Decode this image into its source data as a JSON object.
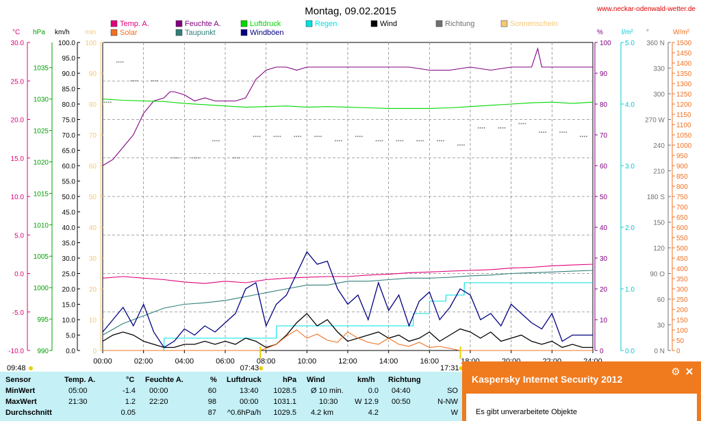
{
  "chart_data": {
    "type": "line",
    "title": "Montag, 09.02.2015",
    "website": "www.neckar-odenwald-wetter.de",
    "x_ticks": [
      "00:00",
      "02:00",
      "04:00",
      "06:00",
      "08:00",
      "10:00",
      "12:00",
      "14:00",
      "16:00",
      "18:00",
      "20:00",
      "22:00",
      "24:00"
    ],
    "sun": {
      "sunrise": "07:43",
      "sunset": "17:31",
      "left_time": "09:48"
    },
    "legend": [
      {
        "name": "Temp. A.",
        "color": "#e0007a"
      },
      {
        "name": "Feuchte A.",
        "color": "#800080"
      },
      {
        "name": "Luftdruck",
        "color": "#00d800"
      },
      {
        "name": "Regen",
        "color": "#00e0e0"
      },
      {
        "name": "Wind",
        "color": "#000000"
      },
      {
        "name": "Richtung",
        "color": "#707070"
      },
      {
        "name": "Sonnenschein",
        "color": "#f5c87a"
      },
      {
        "name": "Solar",
        "color": "#f07020"
      },
      {
        "name": "Taupunkt",
        "color": "#2f7f78"
      },
      {
        "name": "Windböen",
        "color": "#000080"
      }
    ],
    "axes": {
      "temp": {
        "unit": "°C",
        "color": "#e0007a",
        "range": [
          -10,
          30
        ],
        "ticks": [
          "30.0",
          "25.0",
          "20.0",
          "15.0",
          "10.0",
          "5.0",
          "0.0",
          "-5.0",
          "-10.0"
        ]
      },
      "pressure": {
        "unit": "hPa",
        "color": "#00a000",
        "range": [
          990,
          1039
        ],
        "ticks": [
          "1035",
          "1030",
          "1025",
          "1020",
          "1015",
          "1010",
          "1005",
          "1000",
          "995",
          "990"
        ]
      },
      "wind": {
        "unit": "km/h",
        "color": "#000000",
        "range": [
          0,
          100
        ],
        "step": 5
      },
      "sunshine": {
        "unit": "min",
        "color": "#f5c87a",
        "range": [
          0,
          100
        ],
        "ticks": [
          "100",
          "90",
          "80",
          "70",
          "60",
          "50",
          "40",
          "30",
          "20",
          "10",
          "0"
        ]
      },
      "humidity": {
        "unit": "%",
        "color": "#800080",
        "range": [
          0,
          100
        ],
        "ticks": [
          "100",
          "90",
          "80",
          "70",
          "60",
          "50",
          "40",
          "30",
          "20",
          "10",
          "0"
        ]
      },
      "rain": {
        "unit": "l/m²",
        "color": "#00c8d8",
        "range": [
          0,
          5
        ],
        "ticks": [
          "5.0",
          "4.0",
          "3.0",
          "2.0",
          "1.0",
          "0.0"
        ]
      },
      "direction": {
        "unit": "°",
        "color": "#707070",
        "range": [
          0,
          360
        ],
        "ticks": [
          "360 N",
          "330",
          "300",
          "270 W",
          "240",
          "210",
          "180 S",
          "150",
          "120",
          "90 O",
          "60",
          "30",
          "0 N"
        ]
      },
      "solar": {
        "unit": "W/m²",
        "color": "#f07020",
        "range": [
          0,
          1500
        ],
        "step": 50
      }
    },
    "series": [
      {
        "name": "Temp. A.",
        "axis": "temp",
        "x": [
          0,
          1,
          2,
          3,
          4,
          5,
          6,
          7,
          8,
          9,
          10,
          11,
          12,
          13,
          14,
          15,
          16,
          17,
          18,
          19,
          20,
          21,
          22,
          23,
          24
        ],
        "values": [
          -0.6,
          -0.4,
          -0.6,
          -0.8,
          -1.1,
          -1.3,
          -1.0,
          -1.2,
          -0.8,
          -0.6,
          -0.5,
          -0.4,
          -0.4,
          -0.2,
          -0.1,
          0.1,
          0.2,
          0.3,
          0.4,
          0.5,
          0.7,
          0.8,
          1.0,
          1.1,
          1.2
        ]
      },
      {
        "name": "Feuchte A.",
        "axis": "humidity",
        "x": [
          0,
          0.5,
          1,
          1.5,
          2,
          2.5,
          3,
          3.3,
          3.5,
          4,
          4.5,
          5,
          5.5,
          6,
          6.5,
          7,
          7.5,
          8,
          8.5,
          9,
          9.5,
          10,
          11,
          12,
          13,
          14,
          15,
          16,
          17,
          18,
          19,
          20,
          21,
          21.3,
          21.5,
          22,
          23,
          24
        ],
        "values": [
          60,
          62,
          66,
          70,
          77,
          81,
          82,
          84,
          84,
          83,
          81,
          82,
          81,
          81,
          81,
          82,
          88,
          91,
          92,
          92,
          91,
          92,
          92,
          92,
          92,
          92,
          92,
          91,
          91,
          92,
          91,
          92,
          92,
          98,
          92,
          92,
          92,
          92
        ]
      },
      {
        "name": "Luftdruck",
        "axis": "pressure",
        "x": [
          0,
          1,
          2,
          3,
          4,
          5,
          6,
          7,
          8,
          9,
          10,
          11,
          12,
          13,
          14,
          15,
          16,
          17,
          18,
          19,
          20,
          21,
          22,
          23,
          24
        ],
        "values": [
          1030.0,
          1029.8,
          1029.7,
          1029.6,
          1029.3,
          1029.1,
          1028.9,
          1028.7,
          1028.8,
          1028.9,
          1028.7,
          1028.8,
          1028.7,
          1028.6,
          1028.5,
          1028.5,
          1028.5,
          1028.6,
          1028.8,
          1029.0,
          1029.2,
          1029.4,
          1029.5,
          1029.3,
          1029.5
        ]
      },
      {
        "name": "Taupunkt",
        "axis": "temp",
        "x": [
          0,
          1,
          2,
          3,
          4,
          5,
          6,
          7,
          8,
          9,
          10,
          11,
          12,
          13,
          14,
          15,
          16,
          17,
          18,
          19,
          20,
          21,
          22,
          23,
          24
        ],
        "values": [
          -8.0,
          -6.5,
          -5.5,
          -4.5,
          -4.0,
          -3.8,
          -3.5,
          -3.0,
          -2.5,
          -2.0,
          -1.5,
          -1.5,
          -1.0,
          -1.0,
          -0.8,
          -0.6,
          -0.6,
          -0.5,
          -0.3,
          -0.2,
          0.0,
          0.1,
          0.2,
          0.3,
          0.4
        ]
      },
      {
        "name": "Regen",
        "axis": "rain",
        "x": [
          0,
          3,
          3.01,
          8.5,
          8.51,
          15.2,
          15.21,
          16,
          16.01,
          16.8,
          16.81,
          17.7,
          17.71,
          24
        ],
        "values": [
          0,
          0,
          0.2,
          0.2,
          0.4,
          0.4,
          0.6,
          0.6,
          0.8,
          0.8,
          0.9,
          0.9,
          1.1,
          1.1
        ]
      },
      {
        "name": "Wind",
        "axis": "wind",
        "x": [
          0,
          0.5,
          1,
          1.5,
          2,
          2.5,
          3,
          3.5,
          4,
          4.5,
          5,
          5.5,
          6,
          6.5,
          7,
          7.5,
          8,
          8.5,
          9,
          9.5,
          10,
          10.5,
          11,
          11.5,
          12,
          12.5,
          13,
          13.5,
          14,
          14.5,
          15,
          15.5,
          16,
          16.5,
          17,
          17.5,
          18,
          18.5,
          19,
          19.5,
          20,
          20.5,
          21,
          21.5,
          22,
          22.5,
          23,
          23.5,
          24
        ],
        "values": [
          3,
          5,
          6,
          5,
          3,
          2,
          1,
          1,
          2,
          2,
          3,
          2,
          3,
          2,
          4,
          3,
          1,
          2,
          5,
          9,
          12,
          8,
          10,
          6,
          3,
          4,
          5,
          6,
          4,
          5,
          3,
          4,
          6,
          3,
          5,
          7,
          6,
          4,
          6,
          3,
          4,
          5,
          3,
          2,
          3,
          1,
          2,
          1,
          1
        ]
      },
      {
        "name": "Windböen",
        "axis": "wind",
        "x": [
          0,
          0.5,
          1,
          1.5,
          2,
          2.5,
          3,
          3.5,
          4,
          4.5,
          5,
          5.5,
          6,
          6.5,
          7,
          7.5,
          8,
          8.5,
          9,
          9.5,
          10,
          10.5,
          11,
          11.5,
          12,
          12.5,
          13,
          13.5,
          14,
          14.5,
          15,
          15.5,
          16,
          16.5,
          17,
          17.5,
          18,
          18.5,
          19,
          19.5,
          20,
          20.5,
          21,
          21.5,
          22,
          22.5,
          23,
          23.5,
          24
        ],
        "values": [
          6,
          10,
          14,
          8,
          15,
          6,
          1,
          3,
          7,
          5,
          8,
          6,
          9,
          12,
          20,
          22,
          8,
          15,
          18,
          25,
          32,
          28,
          29,
          20,
          15,
          18,
          10,
          22,
          13,
          18,
          8,
          16,
          19,
          10,
          14,
          20,
          18,
          10,
          12,
          8,
          15,
          12,
          9,
          7,
          12,
          3,
          5,
          5,
          5
        ]
      },
      {
        "name": "Solar",
        "axis": "solar",
        "x": [
          0,
          7.7,
          8,
          8.5,
          9,
          9.5,
          10,
          10.5,
          11,
          11.5,
          12,
          12.5,
          13,
          13.5,
          14,
          14.5,
          15,
          15.5,
          16,
          16.5,
          17,
          17.5,
          24
        ],
        "values": [
          0,
          0,
          10,
          30,
          70,
          100,
          60,
          80,
          50,
          40,
          90,
          60,
          40,
          30,
          60,
          30,
          20,
          40,
          15,
          20,
          10,
          0,
          0
        ]
      },
      {
        "name": "Richtung",
        "axis": "direction",
        "x": [
          0.2,
          0.8,
          1.5,
          2.5,
          3.5,
          4.5,
          5.5,
          6.5,
          7.5,
          8.5,
          9.5,
          10.5,
          11.5,
          12.5,
          13.5,
          14.5,
          15.5,
          16.5,
          17.5,
          18.5,
          19.5,
          20.5,
          21.5,
          22.5,
          23.5
        ],
        "values": [
          290,
          337,
          315,
          315,
          225,
          225,
          245,
          225,
          250,
          250,
          250,
          250,
          245,
          250,
          245,
          245,
          245,
          245,
          240,
          260,
          260,
          265,
          255,
          255,
          250
        ]
      }
    ]
  },
  "stats": {
    "header": {
      "sensor": "Sensor",
      "temp": "Temp. A.",
      "temp_unit": "°C",
      "hum": "Feuchte A.",
      "hum_unit": "%",
      "press": "Luftdruck",
      "press_unit": "hPa",
      "wind": "Wind",
      "wind_unit": "km/h",
      "dir": "Richtung"
    },
    "min": {
      "label": "MinWert",
      "temp_time": "05:00",
      "temp": "-1.4",
      "hum_time": "00:00",
      "hum": "60",
      "press_time": "13:40",
      "press": "1028.5",
      "wind_time": "Ø 10 min.",
      "wind": "0.0",
      "dir_time": "04:40",
      "dir": "SO"
    },
    "max": {
      "label": "MaxWert",
      "temp_time": "21:30",
      "temp": "1.2",
      "hum_time": "22:20",
      "hum": "98",
      "press_time": "00:00",
      "press": "1031.1",
      "wind_time": "10:30",
      "wind": "W 12.9",
      "dir_time": "00:50",
      "dir": "N-NW"
    },
    "avg": {
      "label": "Durchschnitt",
      "temp": "0.05",
      "hum": "87",
      "press_time": "^0.6hPa/h",
      "press": "1029.5",
      "wind_time": "4.2 km",
      "wind": "4.2",
      "dir": "W"
    }
  },
  "popup": {
    "title": "Kaspersky Internet Security 2012",
    "message": "Es gibt unverarbeitete Objekte"
  }
}
